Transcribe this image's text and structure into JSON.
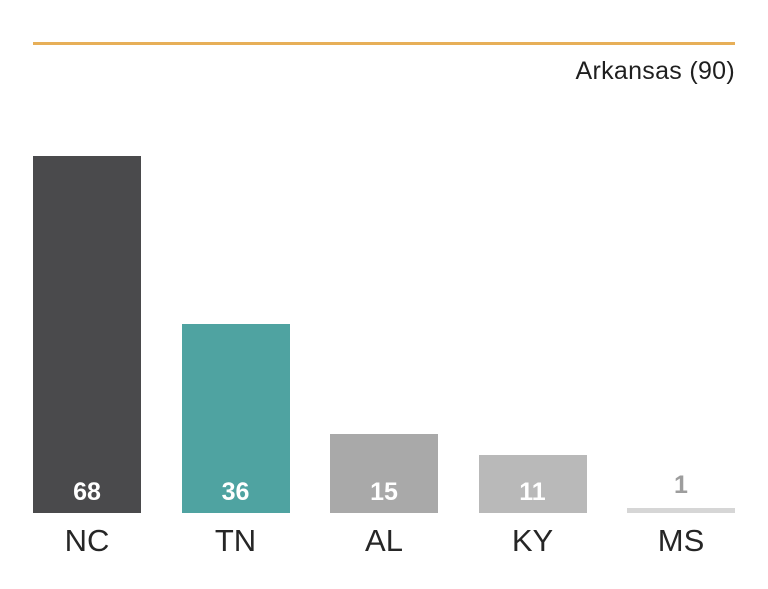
{
  "header": {
    "legend_label": "Arkansas (90)"
  },
  "colors": {
    "top_rule": "#E7AF58",
    "legend_text": "#1f1f1f",
    "axis_label_text": "#262626"
  },
  "chart_data": {
    "type": "bar",
    "title": "Arkansas (90)",
    "legend_position": "top-right",
    "categories": [
      "NC",
      "TN",
      "AL",
      "KY",
      "MS"
    ],
    "values": [
      68,
      36,
      15,
      11,
      1
    ],
    "bar_colors": [
      "#4A4A4C",
      "#4FA3A1",
      "#A9A9A9",
      "#B9B9B9",
      "#D6D6D6"
    ],
    "value_label_colors": [
      "#FFFFFF",
      "#FFFFFF",
      "#FFFFFF",
      "#FFFFFF",
      "#9D9D9D"
    ],
    "xlabel": "",
    "ylabel": "",
    "ylim": [
      0,
      68
    ],
    "grid": false,
    "value_labels_shown": true
  }
}
